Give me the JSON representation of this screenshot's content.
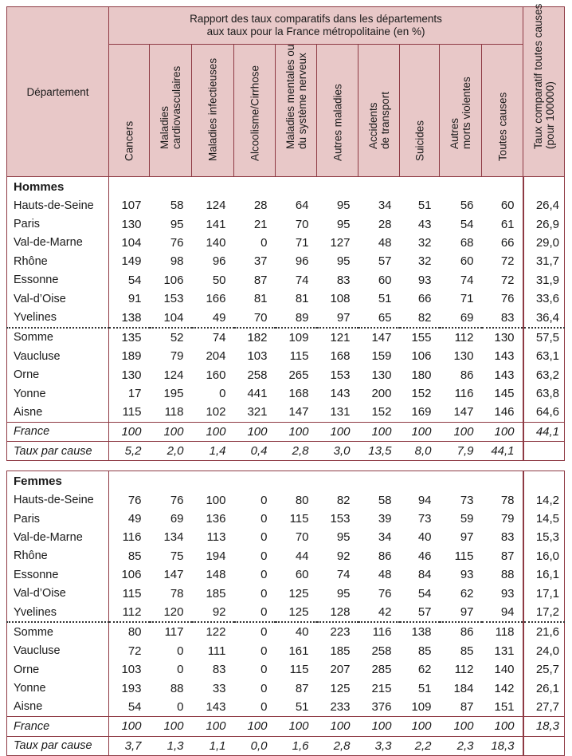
{
  "header": {
    "departement": "Département",
    "group_title_line1": "Rapport des taux comparatifs dans les départements",
    "group_title_line2": "aux taux pour la France métropolitaine (en %)",
    "columns": [
      "Cancers",
      "Maladies\ncardiovasculaires",
      "Maladies infectieuses",
      "Alcoolisme/Cirrhose",
      "Maladies mentales ou\ndu système nerveux",
      "Autres maladies",
      "Accidents\nde transport",
      "Suicides",
      "Autres\nmorts violentes",
      "Toutes causes"
    ],
    "last_column": "Taux comparatif toutes causes\n(pour 100000)"
  },
  "hommes": {
    "title": "Hommes",
    "rows_top": [
      {
        "dep": "Hauts-de-Seine",
        "v": [
          "107",
          "58",
          "124",
          "28",
          "64",
          "95",
          "34",
          "51",
          "56",
          "60"
        ],
        "taux": "26,4"
      },
      {
        "dep": "Paris",
        "v": [
          "130",
          "95",
          "141",
          "21",
          "70",
          "95",
          "28",
          "43",
          "54",
          "61"
        ],
        "taux": "26,9"
      },
      {
        "dep": "Val-de-Marne",
        "v": [
          "104",
          "76",
          "140",
          "0",
          "71",
          "127",
          "48",
          "32",
          "68",
          "66"
        ],
        "taux": "29,0"
      },
      {
        "dep": "Rhône",
        "v": [
          "149",
          "98",
          "96",
          "37",
          "96",
          "95",
          "57",
          "32",
          "60",
          "72"
        ],
        "taux": "31,7"
      },
      {
        "dep": "Essonne",
        "v": [
          "54",
          "106",
          "50",
          "87",
          "74",
          "83",
          "60",
          "93",
          "74",
          "72"
        ],
        "taux": "31,9"
      },
      {
        "dep": "Val-d’Oise",
        "v": [
          "91",
          "153",
          "166",
          "81",
          "81",
          "108",
          "51",
          "66",
          "71",
          "76"
        ],
        "taux": "33,6"
      },
      {
        "dep": "Yvelines",
        "v": [
          "138",
          "104",
          "49",
          "70",
          "89",
          "97",
          "65",
          "82",
          "69",
          "83"
        ],
        "taux": "36,4"
      }
    ],
    "rows_bottom": [
      {
        "dep": "Somme",
        "v": [
          "135",
          "52",
          "74",
          "182",
          "109",
          "121",
          "147",
          "155",
          "112",
          "130"
        ],
        "taux": "57,5"
      },
      {
        "dep": "Vaucluse",
        "v": [
          "189",
          "79",
          "204",
          "103",
          "115",
          "168",
          "159",
          "106",
          "130",
          "143"
        ],
        "taux": "63,1"
      },
      {
        "dep": "Orne",
        "v": [
          "130",
          "124",
          "160",
          "258",
          "265",
          "153",
          "130",
          "180",
          "86",
          "143"
        ],
        "taux": "63,2"
      },
      {
        "dep": "Yonne",
        "v": [
          "17",
          "195",
          "0",
          "441",
          "168",
          "143",
          "200",
          "152",
          "116",
          "145"
        ],
        "taux": "63,8"
      },
      {
        "dep": "Aisne",
        "v": [
          "115",
          "118",
          "102",
          "321",
          "147",
          "131",
          "152",
          "169",
          "147",
          "146"
        ],
        "taux": "64,6"
      }
    ],
    "france": {
      "dep": "France",
      "v": [
        "100",
        "100",
        "100",
        "100",
        "100",
        "100",
        "100",
        "100",
        "100",
        "100"
      ],
      "taux": "44,1"
    },
    "taux_par_cause": {
      "dep": "Taux par cause",
      "v": [
        "5,2",
        "2,0",
        "1,4",
        "0,4",
        "2,8",
        "3,0",
        "13,5",
        "8,0",
        "7,9",
        "44,1"
      ],
      "taux": ""
    }
  },
  "femmes": {
    "title": "Femmes",
    "rows_top": [
      {
        "dep": "Hauts-de-Seine",
        "v": [
          "76",
          "76",
          "100",
          "0",
          "80",
          "82",
          "58",
          "94",
          "73",
          "78"
        ],
        "taux": "14,2"
      },
      {
        "dep": "Paris",
        "v": [
          "49",
          "69",
          "136",
          "0",
          "115",
          "153",
          "39",
          "73",
          "59",
          "79"
        ],
        "taux": "14,5"
      },
      {
        "dep": "Val-de-Marne",
        "v": [
          "116",
          "134",
          "113",
          "0",
          "70",
          "95",
          "34",
          "40",
          "97",
          "83"
        ],
        "taux": "15,3"
      },
      {
        "dep": "Rhône",
        "v": [
          "85",
          "75",
          "194",
          "0",
          "44",
          "92",
          "86",
          "46",
          "115",
          "87"
        ],
        "taux": "16,0"
      },
      {
        "dep": "Essonne",
        "v": [
          "106",
          "147",
          "148",
          "0",
          "60",
          "74",
          "48",
          "84",
          "93",
          "88"
        ],
        "taux": "16,1"
      },
      {
        "dep": "Val-d’Oise",
        "v": [
          "115",
          "78",
          "185",
          "0",
          "125",
          "95",
          "76",
          "54",
          "62",
          "93"
        ],
        "taux": "17,1"
      },
      {
        "dep": "Yvelines",
        "v": [
          "112",
          "120",
          "92",
          "0",
          "125",
          "128",
          "42",
          "57",
          "97",
          "94"
        ],
        "taux": "17,2"
      }
    ],
    "rows_bottom": [
      {
        "dep": "Somme",
        "v": [
          "80",
          "117",
          "122",
          "0",
          "40",
          "223",
          "116",
          "138",
          "86",
          "118"
        ],
        "taux": "21,6"
      },
      {
        "dep": "Vaucluse",
        "v": [
          "72",
          "0",
          "111",
          "0",
          "161",
          "185",
          "258",
          "85",
          "85",
          "131"
        ],
        "taux": "24,0"
      },
      {
        "dep": "Orne",
        "v": [
          "103",
          "0",
          "83",
          "0",
          "115",
          "207",
          "285",
          "62",
          "112",
          "140"
        ],
        "taux": "25,7"
      },
      {
        "dep": "Yonne",
        "v": [
          "193",
          "88",
          "33",
          "0",
          "87",
          "125",
          "215",
          "51",
          "184",
          "142"
        ],
        "taux": "26,1"
      },
      {
        "dep": "Aisne",
        "v": [
          "54",
          "0",
          "143",
          "0",
          "51",
          "233",
          "376",
          "109",
          "87",
          "151"
        ],
        "taux": "27,7"
      }
    ],
    "france": {
      "dep": "France",
      "v": [
        "100",
        "100",
        "100",
        "100",
        "100",
        "100",
        "100",
        "100",
        "100",
        "100"
      ],
      "taux": "18,3"
    },
    "taux_par_cause": {
      "dep": "Taux par cause",
      "v": [
        "3,7",
        "1,3",
        "1,1",
        "0,0",
        "1,6",
        "2,8",
        "3,3",
        "2,2",
        "2,3",
        "18,3"
      ],
      "taux": ""
    }
  }
}
